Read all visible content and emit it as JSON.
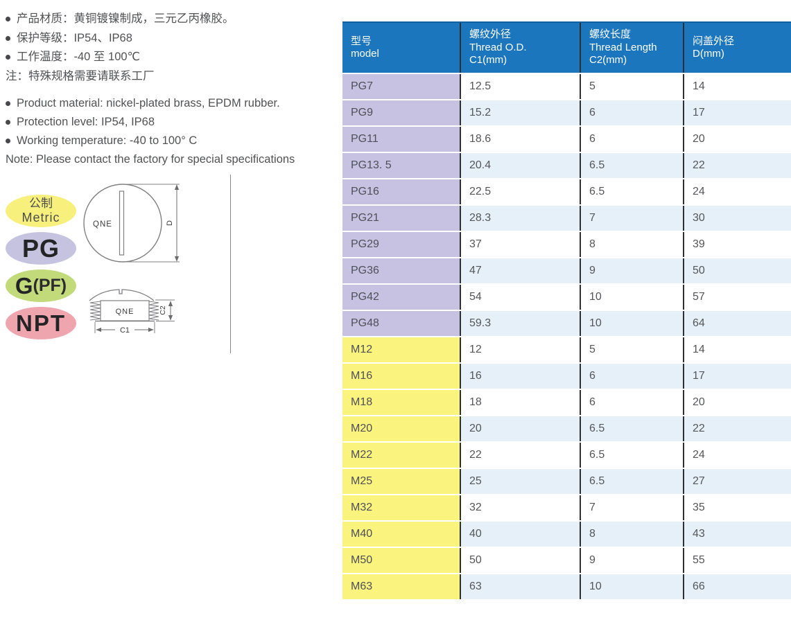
{
  "notes_cn": {
    "bullets": [
      "产品材质：黄铜镀镍制成，三元乙丙橡胶。",
      "保护等级：IP54、IP68",
      "工作温度：-40 至 100℃"
    ],
    "note": "注：特殊规格需要请联系工厂"
  },
  "notes_en": {
    "bullets": [
      "Product material: nickel-plated brass, EPDM rubber.",
      "Protection level: IP54, IP68",
      "Working temperature: -40 to 100° C"
    ],
    "note": "Note: Please contact the factory for special specifications"
  },
  "badges": [
    {
      "id": "metric",
      "text_top": "公制",
      "text_bottom": "Metric",
      "bg": "#f7f07d"
    },
    {
      "id": "pg",
      "text": "PG",
      "bg": "#c6c3e1"
    },
    {
      "id": "gpf",
      "text_main": "G",
      "text_paren": "(PF)",
      "bg": "#c2da7a"
    },
    {
      "id": "npt",
      "text": "NPT",
      "bg": "#efa5ad"
    }
  ],
  "drawing": {
    "front_label": "QNE",
    "front_dim": "D",
    "side_label": "QNE",
    "side_dim_width": "C1",
    "side_dim_height": "C2"
  },
  "table": {
    "header": [
      {
        "lines": [
          "型号",
          "model"
        ]
      },
      {
        "lines": [
          "螺纹外径",
          "Thread O.D.",
          "C1(mm)"
        ]
      },
      {
        "lines": [
          "螺纹长度",
          "Thread Length",
          "C2(mm)"
        ]
      },
      {
        "lines": [
          "闷盖外径",
          "D(mm)"
        ]
      }
    ],
    "rows": [
      {
        "model": "PG7",
        "c1": "12.5",
        "c2": "5",
        "d": "14",
        "group": "pg"
      },
      {
        "model": "PG9",
        "c1": "15.2",
        "c2": "6",
        "d": "17",
        "group": "pg"
      },
      {
        "model": "PG11",
        "c1": "18.6",
        "c2": "6",
        "d": "20",
        "group": "pg"
      },
      {
        "model": "PG13. 5",
        "c1": "20.4",
        "c2": "6.5",
        "d": "22",
        "group": "pg"
      },
      {
        "model": "PG16",
        "c1": "22.5",
        "c2": "6.5",
        "d": "24",
        "group": "pg"
      },
      {
        "model": "PG21",
        "c1": "28.3",
        "c2": "7",
        "d": "30",
        "group": "pg"
      },
      {
        "model": "PG29",
        "c1": "37",
        "c2": "8",
        "d": "39",
        "group": "pg"
      },
      {
        "model": "PG36",
        "c1": "47",
        "c2": "9",
        "d": "50",
        "group": "pg"
      },
      {
        "model": "PG42",
        "c1": "54",
        "c2": "10",
        "d": "57",
        "group": "pg"
      },
      {
        "model": "PG48",
        "c1": "59.3",
        "c2": "10",
        "d": "64",
        "group": "pg"
      },
      {
        "model": "M12",
        "c1": "12",
        "c2": "5",
        "d": "14",
        "group": "m"
      },
      {
        "model": "M16",
        "c1": "16",
        "c2": "6",
        "d": "17",
        "group": "m"
      },
      {
        "model": "M18",
        "c1": "18",
        "c2": "6",
        "d": "20",
        "group": "m"
      },
      {
        "model": "M20",
        "c1": "20",
        "c2": "6.5",
        "d": "22",
        "group": "m"
      },
      {
        "model": "M22",
        "c1": "22",
        "c2": "6.5",
        "d": "24",
        "group": "m"
      },
      {
        "model": "M25",
        "c1": "25",
        "c2": "6.5",
        "d": "27",
        "group": "m"
      },
      {
        "model": "M32",
        "c1": "32",
        "c2": "7",
        "d": "35",
        "group": "m"
      },
      {
        "model": "M40",
        "c1": "40",
        "c2": "8",
        "d": "43",
        "group": "m"
      },
      {
        "model": "M50",
        "c1": "50",
        "c2": "9",
        "d": "55",
        "group": "m"
      },
      {
        "model": "M63",
        "c1": "63",
        "c2": "10",
        "d": "66",
        "group": "m"
      }
    ]
  },
  "colors": {
    "header_bg": "#1b76bd",
    "header_top_edge": "#0f62a2",
    "header_text": "#ffffff",
    "column_divider": "#2f2f31",
    "pg_model_bg": "#c7c2e1",
    "m_model_bg": "#faf37e",
    "row_white": "#ffffff",
    "row_stripe": "#e5f0f8",
    "body_text": "#55565a",
    "note_text": "#515254",
    "drawing_stroke": "#808083"
  }
}
